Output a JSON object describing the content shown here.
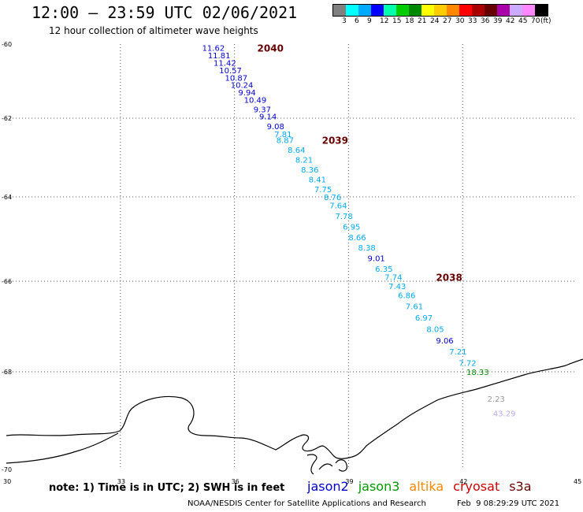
{
  "header": {
    "title": "12:00 – 23:59 UTC 02/06/2021",
    "subtitle": "12 hour collection of altimeter wave heights"
  },
  "colorbar": {
    "colors": [
      "#808080",
      "#00ffff",
      "#00aaff",
      "#0000ff",
      "#00ffaa",
      "#00cc00",
      "#008800",
      "#ffff00",
      "#ffcc00",
      "#ff8800",
      "#ff0000",
      "#aa0000",
      "#660000",
      "#aa00aa",
      "#ccaaff",
      "#ff88ff",
      "#000000"
    ],
    "labels": [
      "3",
      "6",
      "9",
      "12",
      "15",
      "18",
      "21",
      "24",
      "27",
      "30",
      "33",
      "36",
      "39",
      "42",
      "45",
      "70",
      "(ft)"
    ]
  },
  "axes": {
    "lat_labels": [
      "-60",
      "-62",
      "-64",
      "-66",
      "-68",
      "-70"
    ],
    "lon_labels": [
      "30",
      "33",
      "36",
      "39",
      "42",
      "45"
    ],
    "lat_range": [
      -70,
      -60
    ],
    "lon_range": [
      30,
      45
    ],
    "grid": "dotted"
  },
  "passes": [
    {
      "label": "2040",
      "lon": 36.6,
      "lat": -60.1
    },
    {
      "label": "2039",
      "lon": 38.3,
      "lat": -62.55
    },
    {
      "label": "2038",
      "lon": 41.3,
      "lat": -65.9
    }
  ],
  "observations": [
    {
      "v": "11.62",
      "lon": 35.15,
      "lat": -60.1,
      "c": "#0000cc"
    },
    {
      "v": "11.81",
      "lon": 35.3,
      "lat": -60.3,
      "c": "#0000cc"
    },
    {
      "v": "11.42",
      "lon": 35.45,
      "lat": -60.5,
      "c": "#0000cc"
    },
    {
      "v": "10.57",
      "lon": 35.6,
      "lat": -60.7,
      "c": "#0000cc"
    },
    {
      "v": "10.87",
      "lon": 35.75,
      "lat": -60.9,
      "c": "#0000cc"
    },
    {
      "v": "10.24",
      "lon": 35.9,
      "lat": -61.1,
      "c": "#0000cc"
    },
    {
      "v": "9.94",
      "lon": 36.1,
      "lat": -61.3,
      "c": "#0000cc"
    },
    {
      "v": "10.49",
      "lon": 36.25,
      "lat": -61.5,
      "c": "#0000cc"
    },
    {
      "v": "9.37",
      "lon": 36.5,
      "lat": -61.75,
      "c": "#0000cc"
    },
    {
      "v": "9.14",
      "lon": 36.65,
      "lat": -61.95,
      "c": "#0000cc"
    },
    {
      "v": "9.08",
      "lon": 36.85,
      "lat": -62.2,
      "c": "#0000cc"
    },
    {
      "v": "7.81",
      "lon": 37.05,
      "lat": -62.4,
      "c": "#00aaee"
    },
    {
      "v": "8.87",
      "lon": 37.1,
      "lat": -62.55,
      "c": "#00aaee"
    },
    {
      "v": "8.64",
      "lon": 37.4,
      "lat": -62.8,
      "c": "#00aaee"
    },
    {
      "v": "8.21",
      "lon": 37.6,
      "lat": -63.05,
      "c": "#00aaee"
    },
    {
      "v": "8.36",
      "lon": 37.75,
      "lat": -63.3,
      "c": "#00aaee"
    },
    {
      "v": "8.41",
      "lon": 37.95,
      "lat": -63.55,
      "c": "#00aaee"
    },
    {
      "v": "7.75",
      "lon": 38.1,
      "lat": -63.8,
      "c": "#00aaee"
    },
    {
      "v": "8.76",
      "lon": 38.35,
      "lat": -64.0,
      "c": "#00aaee"
    },
    {
      "v": "7.64",
      "lon": 38.5,
      "lat": -64.2,
      "c": "#00aaee"
    },
    {
      "v": "7.78",
      "lon": 38.65,
      "lat": -64.45,
      "c": "#00aaee"
    },
    {
      "v": "6.95",
      "lon": 38.85,
      "lat": -64.7,
      "c": "#00aaee"
    },
    {
      "v": "8.66",
      "lon": 39.0,
      "lat": -64.95,
      "c": "#00aaee"
    },
    {
      "v": "8.38",
      "lon": 39.25,
      "lat": -65.2,
      "c": "#00aaee"
    },
    {
      "v": "9.01",
      "lon": 39.5,
      "lat": -65.45,
      "c": "#0000cc"
    },
    {
      "v": "6.35",
      "lon": 39.7,
      "lat": -65.7,
      "c": "#00aaee"
    },
    {
      "v": "7.74",
      "lon": 39.95,
      "lat": -65.9,
      "c": "#00aaee"
    },
    {
      "v": "7.43",
      "lon": 40.05,
      "lat": -66.1,
      "c": "#00aaee"
    },
    {
      "v": "6.86",
      "lon": 40.3,
      "lat": -66.3,
      "c": "#00aaee"
    },
    {
      "v": "7.61",
      "lon": 40.5,
      "lat": -66.55,
      "c": "#00aaee"
    },
    {
      "v": "6.97",
      "lon": 40.75,
      "lat": -66.8,
      "c": "#00aaee"
    },
    {
      "v": "8.05",
      "lon": 41.05,
      "lat": -67.05,
      "c": "#00aaee"
    },
    {
      "v": "9.06",
      "lon": 41.3,
      "lat": -67.3,
      "c": "#0000cc"
    },
    {
      "v": "7.21",
      "lon": 41.65,
      "lat": -67.55,
      "c": "#00aaee"
    },
    {
      "v": "7.72",
      "lon": 41.9,
      "lat": -67.8,
      "c": "#00aaee"
    },
    {
      "v": "18.33",
      "lon": 42.1,
      "lat": -68.0,
      "c": "#008800"
    },
    {
      "v": "2.23",
      "lon": 42.65,
      "lat": -68.55,
      "c": "#999999"
    },
    {
      "v": "43.29",
      "lon": 42.8,
      "lat": -68.85,
      "c": "#bbaaee"
    }
  ],
  "footer": {
    "note": "note: 1) Time is in UTC; 2) SWH is in feet",
    "missions": [
      {
        "name": "jason2",
        "color": "#0000cc"
      },
      {
        "name": "jason3",
        "color": "#009900"
      },
      {
        "name": "altika",
        "color": "#ff8800"
      },
      {
        "name": "cryosat",
        "color": "#cc0000"
      },
      {
        "name": "s3a",
        "color": "#660000"
      }
    ],
    "credit": "NOAA/NESDIS Center for Satellite Applications and Research",
    "stamp": "Feb  9 08:29:29 UTC 2021"
  }
}
